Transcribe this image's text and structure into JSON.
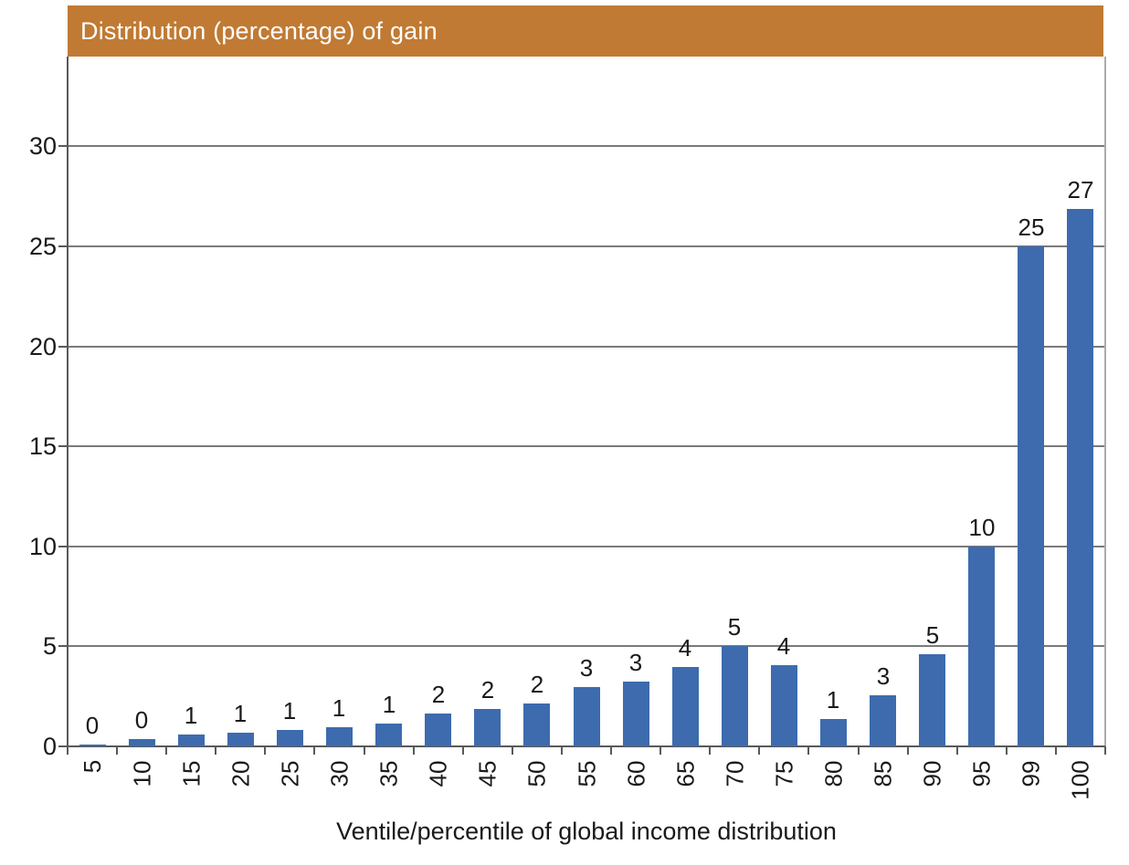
{
  "chart_data": {
    "type": "bar",
    "title": "Distribution (percentage) of gain",
    "xlabel": "Ventile/percentile of global income distribution",
    "ylabel": "",
    "categories": [
      "5",
      "10",
      "15",
      "20",
      "25",
      "30",
      "35",
      "40",
      "45",
      "50",
      "55",
      "60",
      "65",
      "70",
      "75",
      "80",
      "85",
      "90",
      "95",
      "99",
      "100"
    ],
    "values": [
      0.1,
      0.37,
      0.61,
      0.7,
      0.84,
      0.98,
      1.12,
      1.63,
      1.87,
      2.15,
      2.97,
      3.26,
      3.95,
      5.0,
      4.05,
      1.37,
      2.55,
      4.63,
      10.0,
      25.0,
      26.85
    ],
    "bar_labels": [
      "0",
      "0",
      "1",
      "1",
      "1",
      "1",
      "1",
      "2",
      "2",
      "2",
      "3",
      "3",
      "4",
      "5",
      "4",
      "1",
      "3",
      "5",
      "10",
      "25",
      "27"
    ],
    "y_ticks": [
      0,
      5,
      10,
      15,
      20,
      25,
      30
    ],
    "ylim": [
      0,
      34.5
    ],
    "grid": true,
    "legend": "none",
    "colors": {
      "bar": "#3D6BAE",
      "title_bar_bg": "#C07A33",
      "title_text": "#FFFFFF",
      "gridline": "#7A7A7A",
      "axis": "#595959",
      "plot_right_border": "#ACACAC",
      "text": "#1A1A1A"
    }
  }
}
